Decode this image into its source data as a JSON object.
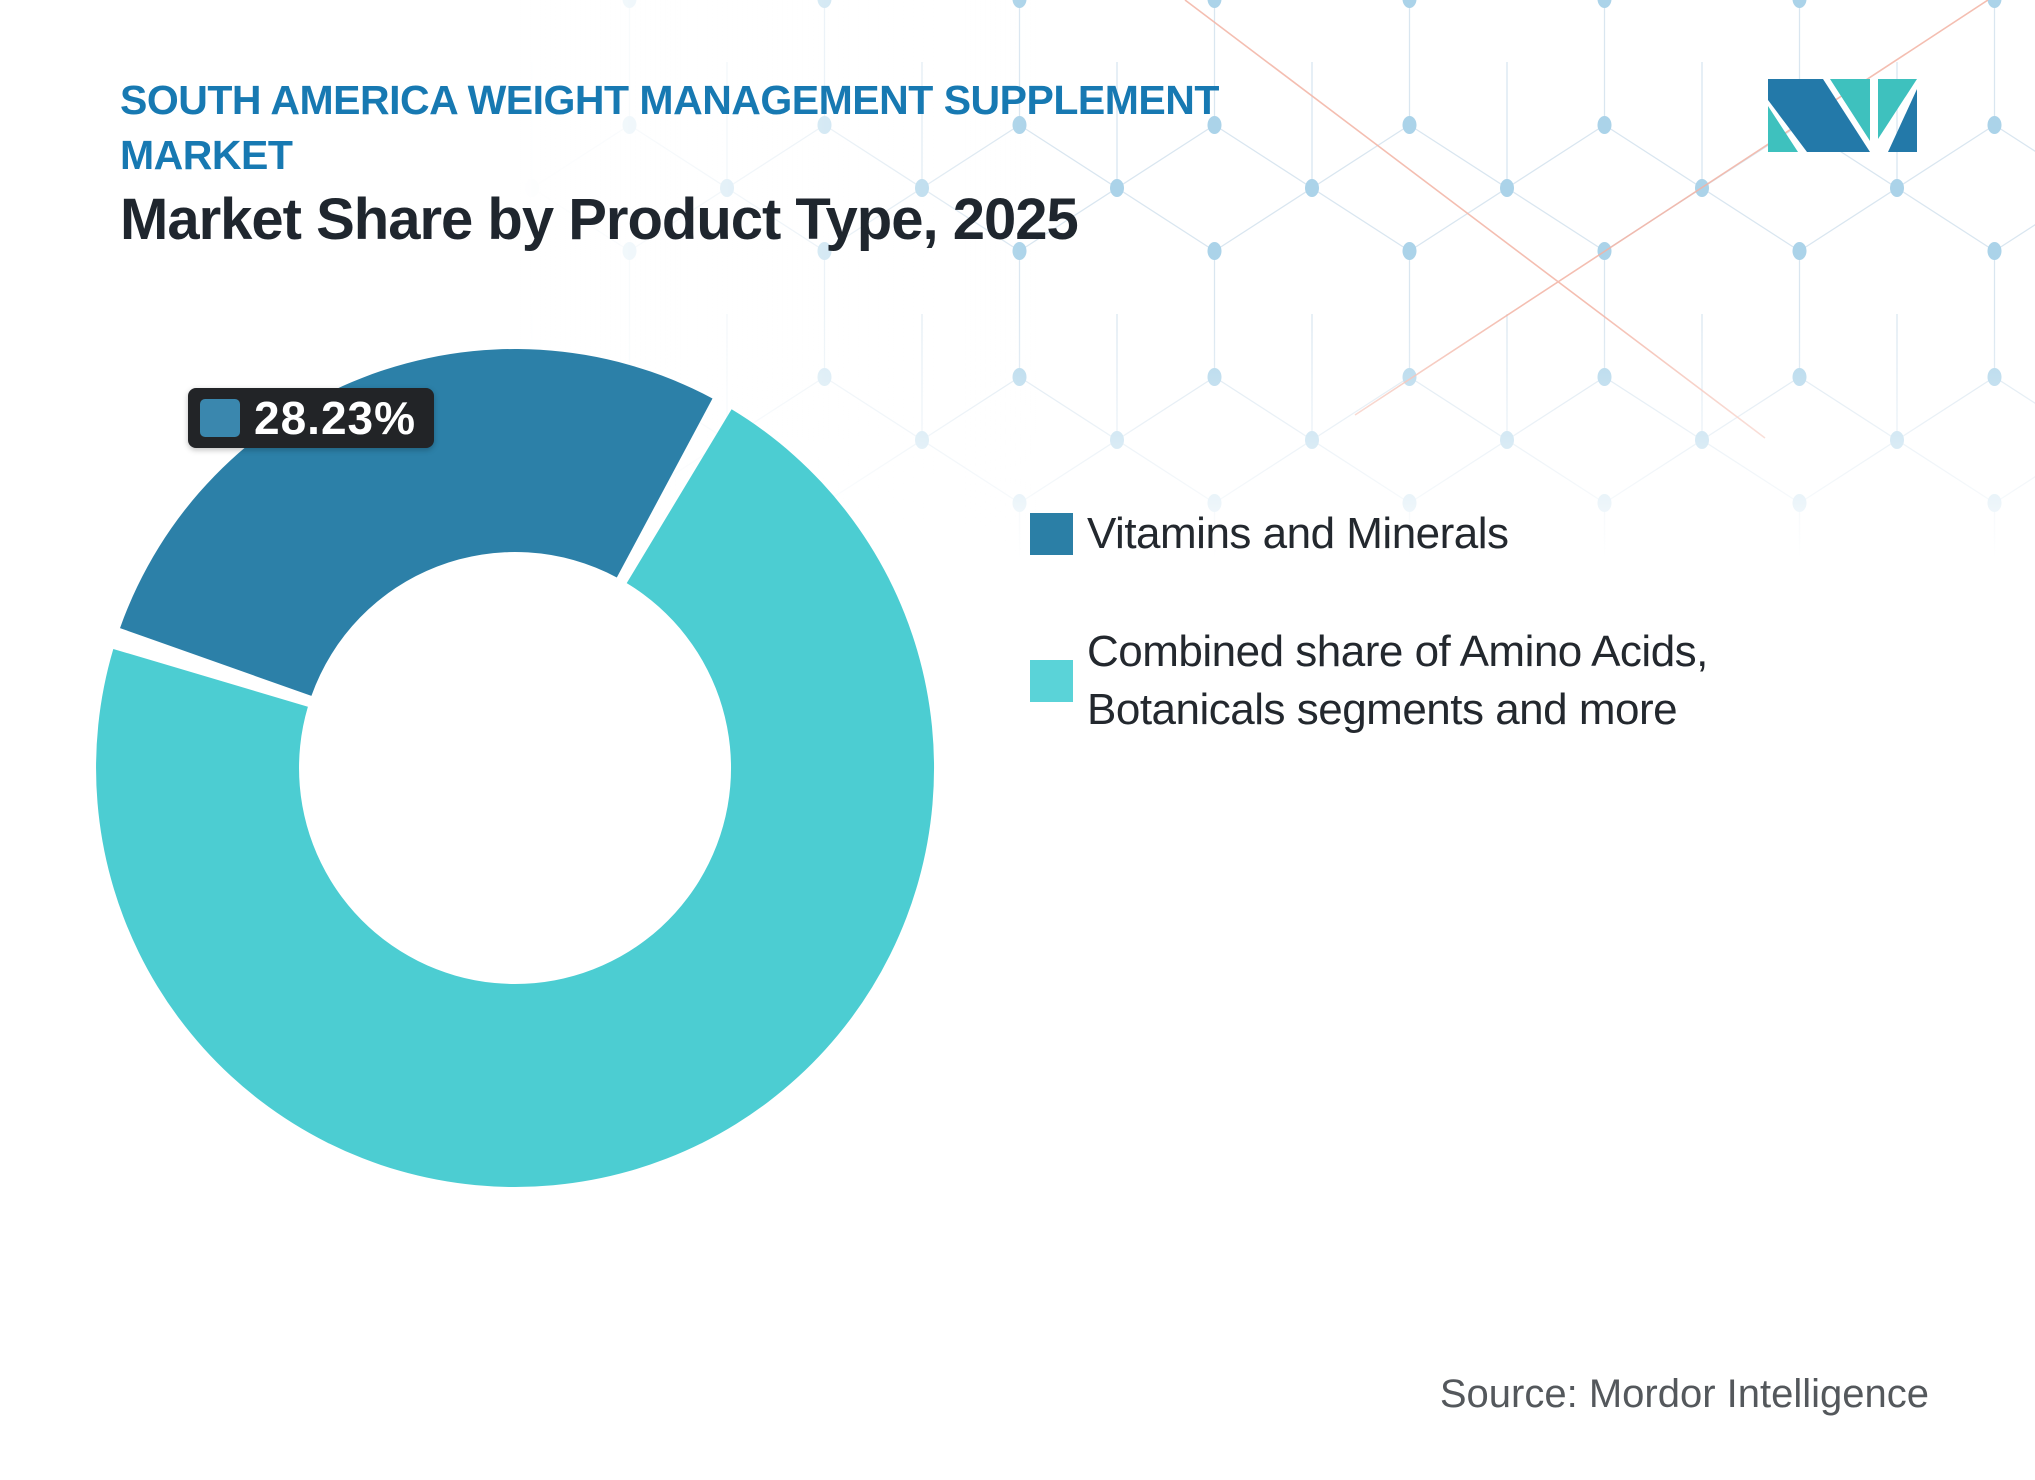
{
  "page": {
    "background": "#ffffff"
  },
  "header": {
    "market_title_lines": [
      "SOUTH AMERICA WEIGHT MANAGEMENT SUPPLEMENT",
      "MARKET"
    ],
    "chart_title": "Market Share by Product Type, 2025",
    "title_color": "#1779B2",
    "chart_title_color": "#1F262E"
  },
  "chart_data": {
    "type": "pie",
    "variant": "donut",
    "title": "Market Share by Product Type, 2025",
    "categories": [
      "Vitamins and Minerals",
      "Combined share of Amino Acids, Botanicals segments and more"
    ],
    "values": [
      28.23,
      71.77
    ],
    "colors": [
      "#2C80A8",
      "#4CCDD2"
    ],
    "unit": "%",
    "data_labels": [
      {
        "series": "Vitamins and Minerals",
        "text": "28.23%",
        "value": 28.23
      }
    ],
    "start_angle_deg": -72,
    "pad_angle_deg": 3,
    "donut_hole_ratio": 0.5155,
    "legend_position": "right",
    "grid": false
  },
  "callout": {
    "label": "28.23%",
    "swatch_color": "#3A87AE",
    "background": "#222427",
    "text_color": "#FFFFFF"
  },
  "legend": {
    "items": [
      {
        "label": "Vitamins and Minerals",
        "color": "#2B7FA6"
      },
      {
        "label": "Combined share of Amino Acids, Botanicals segments and more",
        "color": "#5AD3D8"
      }
    ]
  },
  "footer": {
    "source_label": "Source: Mordor Intelligence"
  },
  "logo": {
    "name": "Mordor Intelligence",
    "blue": "#2379A9",
    "teal": "#3EC1BE"
  },
  "background_pattern": {
    "description": "hexagonal-mesh",
    "line_color": "#D9E6F0",
    "dot_color": "#ABD3E9",
    "accent_line_color": "#F3B3A4"
  }
}
